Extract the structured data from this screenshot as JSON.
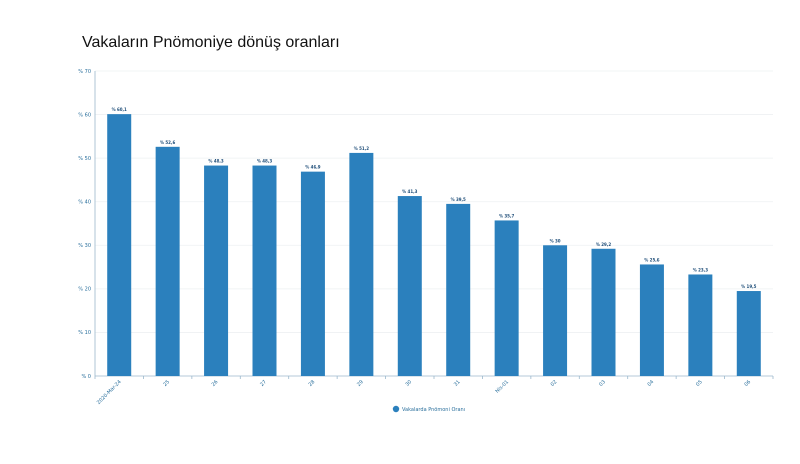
{
  "chart_data": {
    "type": "bar",
    "title": "Vakaların Pnömoniye dönüş oranları",
    "categories": [
      "2020-Mar-24",
      "25",
      "26",
      "27",
      "28",
      "29",
      "30",
      "31",
      "Nis-01",
      "02",
      "03",
      "04",
      "05",
      "06"
    ],
    "series": [
      {
        "name": "Vakalarda Pnömoni Oranı",
        "values": [
          60.1,
          52.6,
          48.3,
          48.3,
          46.9,
          51.2,
          41.3,
          39.5,
          35.7,
          30,
          29.2,
          25.6,
          23.3,
          19.5
        ],
        "labels": [
          "% 60,1",
          "% 52,6",
          "% 48,3",
          "% 48,3",
          "% 46,9",
          "% 51,2",
          "% 41,3",
          "% 39,5",
          "% 35,7",
          "% 30",
          "% 29,2",
          "% 25,6",
          "% 23,3",
          "% 19,5"
        ],
        "color": "#2b80bd"
      }
    ],
    "yticks": [
      0,
      10,
      20,
      30,
      40,
      50,
      60,
      70
    ],
    "ytick_labels": [
      "% 0",
      "% 10",
      "% 20",
      "% 30",
      "% 40",
      "% 50",
      "% 60",
      "% 70"
    ],
    "ylim": [
      0,
      70
    ],
    "xlabel": "",
    "ylabel": "",
    "grid": true,
    "legend": "bottom-center"
  }
}
